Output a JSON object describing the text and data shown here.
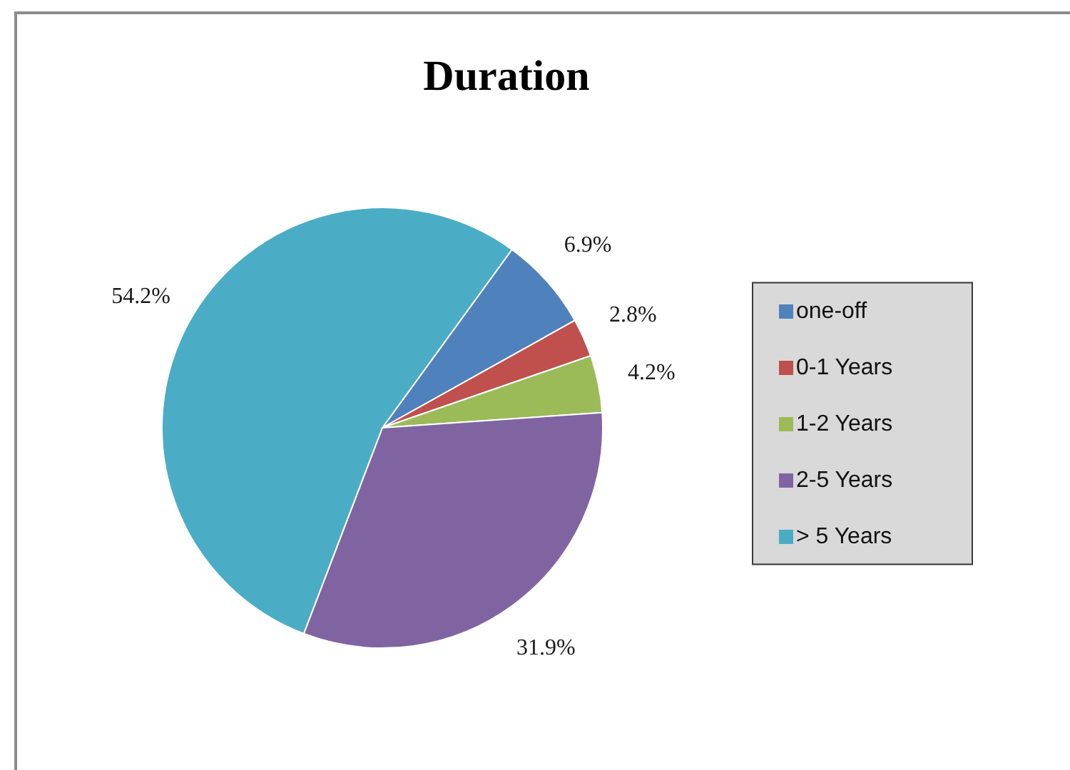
{
  "chart_data": {
    "type": "pie",
    "title": "Duration",
    "categories": [
      "one-off",
      "0-1 Years",
      "1-2 Years",
      "2-5 Years",
      "> 5 Years"
    ],
    "values": [
      6.9,
      2.8,
      4.2,
      31.9,
      54.2
    ],
    "colors": [
      "#4f81bd",
      "#c0504d",
      "#9bbb59",
      "#8064a2",
      "#4bacc6"
    ],
    "value_labels": [
      "6.9%",
      "2.8%",
      "4.2%",
      "31.9%",
      "54.2%"
    ],
    "legend": "right"
  }
}
